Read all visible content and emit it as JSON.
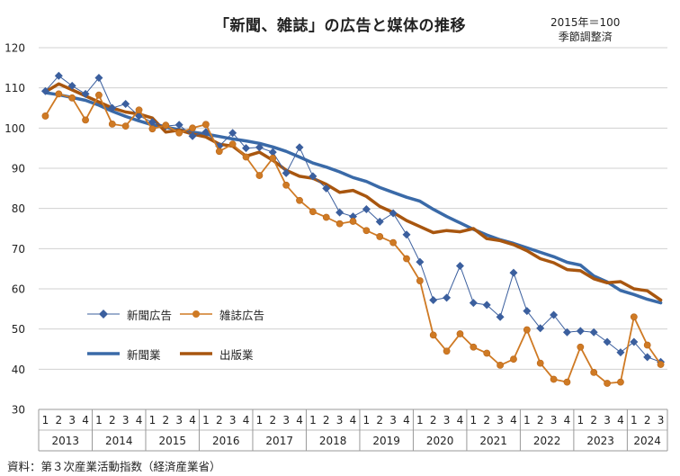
{
  "chart_data": {
    "type": "line",
    "title": "「新聞、雑誌」の広告と媒体の推移",
    "note_lines": [
      "2015年＝100",
      "季節調整済"
    ],
    "source": "資料：第３次産業活動指数（経済産業省）",
    "ylim": [
      30,
      120
    ],
    "yticks": [
      30,
      40,
      50,
      60,
      70,
      80,
      90,
      100,
      110,
      120
    ],
    "grid": true,
    "quarter_labels": [
      "1",
      "2",
      "3",
      "4"
    ],
    "years": [
      "2013",
      "2014",
      "2015",
      "2016",
      "2017",
      "2018",
      "2019",
      "2020",
      "2021",
      "2022",
      "2023",
      "2024"
    ],
    "year_quarter_counts": [
      4,
      4,
      4,
      4,
      4,
      4,
      4,
      4,
      4,
      4,
      4,
      3
    ],
    "series": [
      {
        "name": "新聞広告",
        "style": "marker-diamond",
        "color": "#3b5f9e",
        "values": [
          109.2,
          113.0,
          110.5,
          108.5,
          112.5,
          105.0,
          106.0,
          103.0,
          101.5,
          100.5,
          100.8,
          98.0,
          99.0,
          95.5,
          98.8,
          95.0,
          95.2,
          94.0,
          88.8,
          95.2,
          88.0,
          85.0,
          79.0,
          78.0,
          79.8,
          76.7,
          78.8,
          73.5,
          66.7,
          57.2,
          57.8,
          65.7,
          56.5,
          56.0,
          53.0,
          64.0,
          54.5,
          50.2,
          53.5,
          49.2,
          49.5,
          49.2,
          46.8,
          44.2,
          46.8,
          43.0,
          41.8
        ]
      },
      {
        "name": "雑誌広告",
        "style": "marker-circle",
        "color": "#cf7a24",
        "values": [
          103.0,
          108.5,
          107.5,
          102.0,
          108.2,
          101.0,
          100.5,
          104.5,
          99.8,
          100.7,
          98.8,
          100.0,
          100.9,
          94.2,
          96.0,
          92.8,
          88.2,
          92.5,
          85.8,
          82.0,
          79.2,
          77.8,
          76.2,
          76.8,
          74.5,
          73.0,
          71.5,
          67.5,
          62.0,
          48.5,
          44.5,
          48.8,
          45.5,
          44.0,
          41.0,
          42.5,
          49.8,
          41.5,
          37.5,
          36.8,
          45.5,
          39.2,
          36.5,
          36.8,
          53.0,
          46.0,
          41.2
        ]
      },
      {
        "name": "新聞業",
        "style": "line-thick",
        "color": "#3a6aa8",
        "values": [
          108.8,
          108.3,
          107.6,
          106.9,
          105.7,
          104.2,
          102.9,
          101.8,
          100.8,
          100.2,
          99.6,
          99.0,
          98.5,
          97.9,
          97.3,
          96.8,
          96.2,
          95.3,
          94.2,
          92.8,
          91.3,
          90.3,
          89.1,
          87.7,
          86.7,
          85.2,
          84.0,
          82.8,
          81.8,
          79.8,
          78.0,
          76.4,
          74.8,
          73.4,
          72.2,
          71.3,
          70.2,
          69.1,
          68.0,
          66.6,
          65.9,
          63.2,
          61.7,
          59.6,
          58.6,
          57.4,
          56.5
        ]
      },
      {
        "name": "出版業",
        "style": "line-thick",
        "color": "#a8560f",
        "values": [
          109.0,
          111.0,
          109.5,
          108.0,
          106.5,
          105.0,
          104.0,
          103.5,
          102.5,
          99.0,
          99.5,
          98.5,
          97.8,
          96.0,
          95.5,
          93.0,
          94.0,
          92.0,
          89.5,
          88.0,
          87.5,
          86.0,
          84.0,
          84.5,
          83.0,
          80.5,
          79.0,
          77.0,
          75.5,
          74.0,
          74.5,
          74.2,
          75.0,
          72.5,
          72.0,
          71.0,
          69.5,
          67.5,
          66.5,
          64.8,
          64.5,
          62.5,
          61.5,
          61.8,
          60.0,
          59.5,
          57.2
        ]
      }
    ]
  },
  "legend": {
    "item1": "新聞広告",
    "item2": "雑誌広告",
    "item3": "新聞業",
    "item4": "出版業"
  }
}
